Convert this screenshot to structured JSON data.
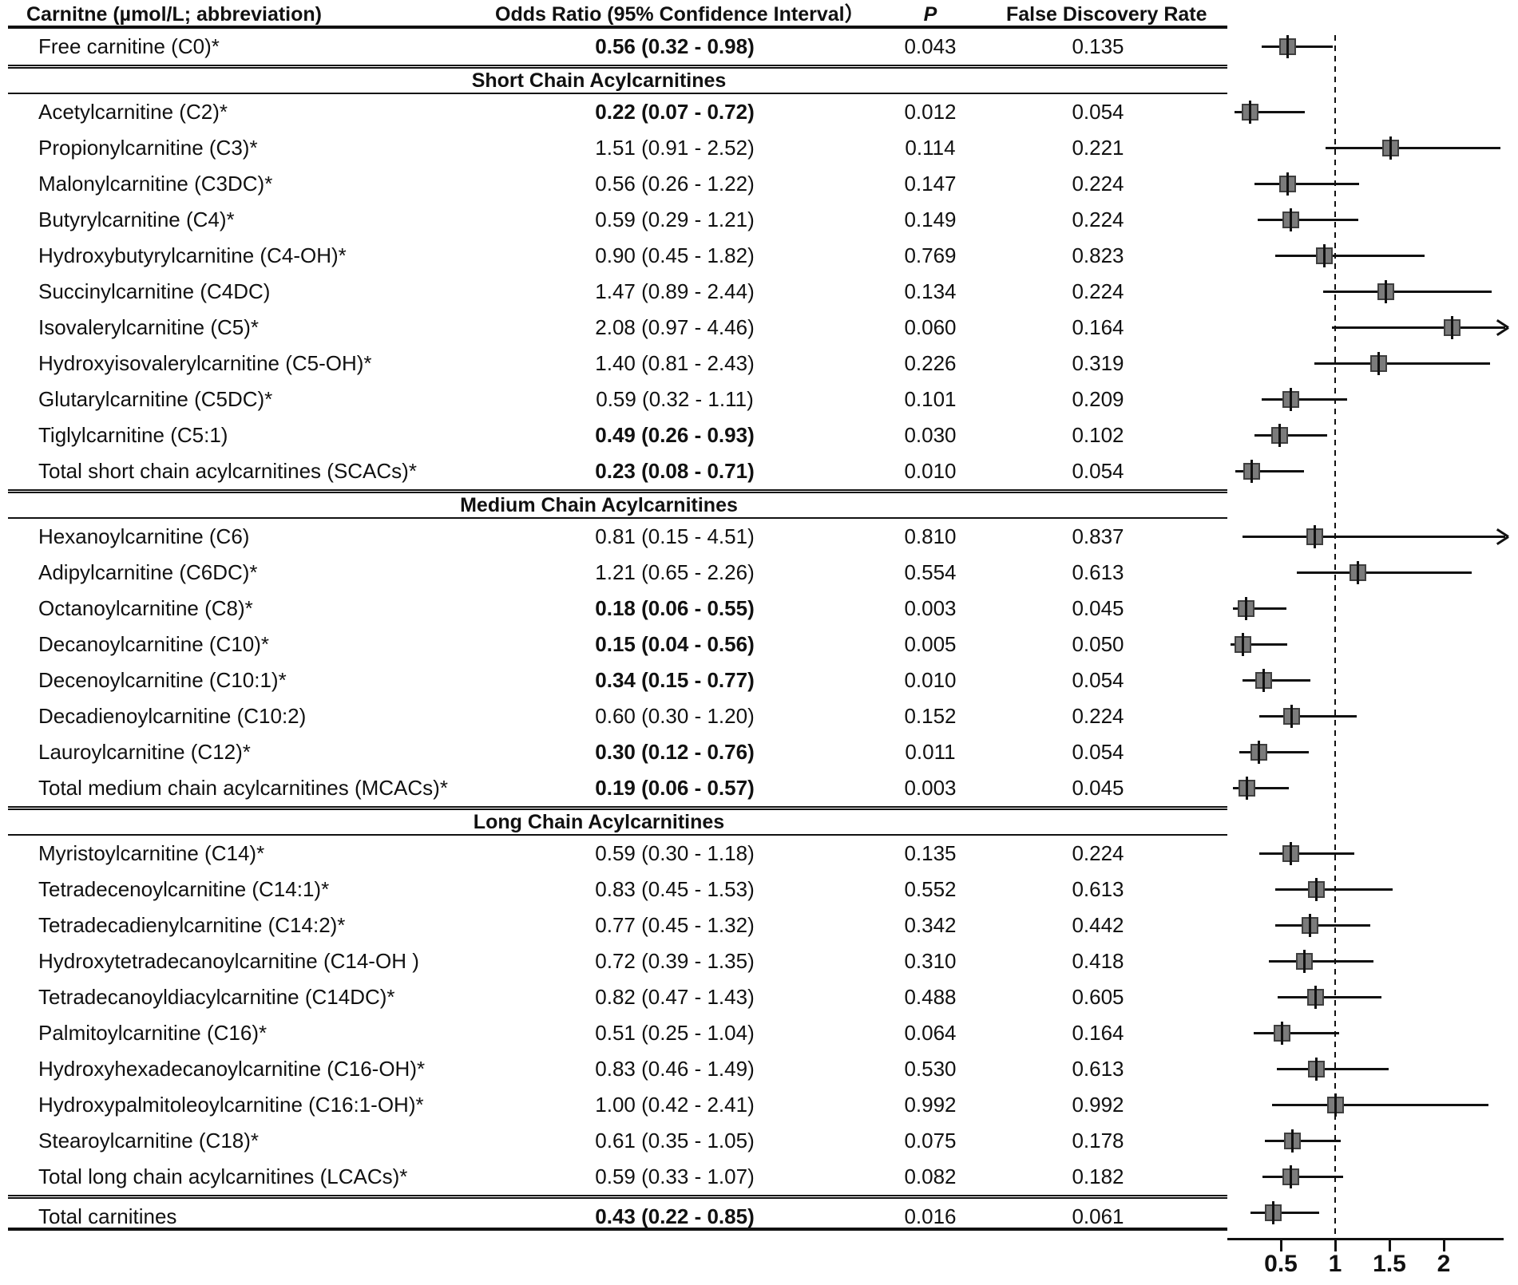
{
  "header": {
    "carnitine": "Carnitne (µmol/L; abbreviation)",
    "odds_ratio": "Odds Ratio (95% Confidence Interval）",
    "p": "P",
    "fdr": "False Discovery Rate"
  },
  "axis": {
    "tick_labels": [
      "0.5",
      "1",
      "1.5",
      "2"
    ],
    "tick_values": [
      0.5,
      1,
      1.5,
      2
    ],
    "reference_line": 1
  },
  "chart_data": {
    "type": "scatter",
    "subtype": "forest-plot",
    "xlabel": "Odds Ratio",
    "x_ticks": [
      0.5,
      1,
      1.5,
      2
    ],
    "x_clip_max": 2.55,
    "reference_line": 1,
    "marker_fill": "#7b7b7b",
    "marker_border": "#3f3f3f",
    "line_color": "#111111",
    "rows": [
      {
        "label": "Free carnitine (C0)*",
        "or_ci": "0.56 (0.32 - 0.98)",
        "bold": true,
        "p": "0.043",
        "fdr": "0.135",
        "or": 0.56,
        "lo": 0.32,
        "hi": 0.98,
        "arrow": false
      },
      {
        "section": "Short Chain Acylcarnitines"
      },
      {
        "label": "Acetylcarnitine (C2)*",
        "or_ci": "0.22 (0.07 - 0.72)",
        "bold": true,
        "p": "0.012",
        "fdr": "0.054",
        "or": 0.22,
        "lo": 0.07,
        "hi": 0.72,
        "arrow": false
      },
      {
        "label": "Propionylcarnitine (C3)*",
        "or_ci": "1.51 (0.91 - 2.52)",
        "bold": false,
        "p": "0.114",
        "fdr": "0.221",
        "or": 1.51,
        "lo": 0.91,
        "hi": 2.52,
        "arrow": false
      },
      {
        "label": "Malonylcarnitine (C3DC)*",
        "or_ci": "0.56 (0.26 - 1.22)",
        "bold": false,
        "p": "0.147",
        "fdr": "0.224",
        "or": 0.56,
        "lo": 0.26,
        "hi": 1.22,
        "arrow": false
      },
      {
        "label": "Butyrylcarnitine (C4)*",
        "or_ci": "0.59 (0.29 - 1.21)",
        "bold": false,
        "p": "0.149",
        "fdr": "0.224",
        "or": 0.59,
        "lo": 0.29,
        "hi": 1.21,
        "arrow": false
      },
      {
        "label": "Hydroxybutyrylcarnitine (C4-OH)*",
        "or_ci": "0.90 (0.45 - 1.82)",
        "bold": false,
        "p": "0.769",
        "fdr": "0.823",
        "or": 0.9,
        "lo": 0.45,
        "hi": 1.82,
        "arrow": false
      },
      {
        "label": "Succinylcarnitine (C4DC)",
        "or_ci": "1.47 (0.89 - 2.44)",
        "bold": false,
        "p": "0.134",
        "fdr": "0.224",
        "or": 1.47,
        "lo": 0.89,
        "hi": 2.44,
        "arrow": false
      },
      {
        "label": "Isovalerylcarnitine (C5)*",
        "or_ci": "2.08 (0.97 - 4.46)",
        "bold": false,
        "p": "0.060",
        "fdr": "0.164",
        "or": 2.08,
        "lo": 0.97,
        "hi": 4.46,
        "arrow": true
      },
      {
        "label": "Hydroxyisovalerylcarnitine (C5-OH)*",
        "or_ci": "1.40 (0.81 - 2.43)",
        "bold": false,
        "p": "0.226",
        "fdr": "0.319",
        "or": 1.4,
        "lo": 0.81,
        "hi": 2.43,
        "arrow": false
      },
      {
        "label": "Glutarylcarnitine (C5DC)*",
        "or_ci": "0.59 (0.32 - 1.11)",
        "bold": false,
        "p": "0.101",
        "fdr": "0.209",
        "or": 0.59,
        "lo": 0.32,
        "hi": 1.11,
        "arrow": false
      },
      {
        "label": "Tiglylcarnitine (C5:1)",
        "or_ci": "0.49 (0.26 - 0.93)",
        "bold": true,
        "p": "0.030",
        "fdr": "0.102",
        "or": 0.49,
        "lo": 0.26,
        "hi": 0.93,
        "arrow": false
      },
      {
        "label": "Total short chain acylcarnitines (SCACs)*",
        "or_ci": "0.23 (0.08 - 0.71)",
        "bold": true,
        "p": "0.010",
        "fdr": "0.054",
        "or": 0.23,
        "lo": 0.08,
        "hi": 0.71,
        "arrow": false
      },
      {
        "section": "Medium Chain Acylcarnitines"
      },
      {
        "label": "Hexanoylcarnitine (C6)",
        "or_ci": "0.81 (0.15 - 4.51)",
        "bold": false,
        "p": "0.810",
        "fdr": "0.837",
        "or": 0.81,
        "lo": 0.15,
        "hi": 4.51,
        "arrow": true
      },
      {
        "label": "Adipylcarnitine (C6DC)*",
        "or_ci": "1.21 (0.65 - 2.26)",
        "bold": false,
        "p": "0.554",
        "fdr": "0.613",
        "or": 1.21,
        "lo": 0.65,
        "hi": 2.26,
        "arrow": false
      },
      {
        "label": "Octanoylcarnitine (C8)*",
        "or_ci": "0.18 (0.06 - 0.55)",
        "bold": true,
        "p": "0.003",
        "fdr": "0.045",
        "or": 0.18,
        "lo": 0.06,
        "hi": 0.55,
        "arrow": false
      },
      {
        "label": "Decanoylcarnitine (C10)*",
        "or_ci": "0.15 (0.04 - 0.56)",
        "bold": true,
        "p": "0.005",
        "fdr": "0.050",
        "or": 0.15,
        "lo": 0.04,
        "hi": 0.56,
        "arrow": false
      },
      {
        "label": "Decenoylcarnitine (C10:1)*",
        "or_ci": "0.34 (0.15 - 0.77)",
        "bold": true,
        "p": "0.010",
        "fdr": "0.054",
        "or": 0.34,
        "lo": 0.15,
        "hi": 0.77,
        "arrow": false
      },
      {
        "label": "Decadienoylcarnitine (C10:2)",
        "or_ci": "0.60 (0.30 - 1.20)",
        "bold": false,
        "p": "0.152",
        "fdr": "0.224",
        "or": 0.6,
        "lo": 0.3,
        "hi": 1.2,
        "arrow": false
      },
      {
        "label": "Lauroylcarnitine (C12)*",
        "or_ci": "0.30 (0.12 - 0.76)",
        "bold": true,
        "p": "0.011",
        "fdr": "0.054",
        "or": 0.3,
        "lo": 0.12,
        "hi": 0.76,
        "arrow": false
      },
      {
        "label": "Total medium chain acylcarnitines (MCACs)*",
        "or_ci": "0.19 (0.06 - 0.57)",
        "bold": true,
        "p": "0.003",
        "fdr": "0.045",
        "or": 0.19,
        "lo": 0.06,
        "hi": 0.57,
        "arrow": false
      },
      {
        "section": "Long Chain Acylcarnitines"
      },
      {
        "label": "Myristoylcarnitine (C14)*",
        "or_ci": "0.59 (0.30 - 1.18)",
        "bold": false,
        "p": "0.135",
        "fdr": "0.224",
        "or": 0.59,
        "lo": 0.3,
        "hi": 1.18,
        "arrow": false
      },
      {
        "label": "Tetradecenoylcarnitine (C14:1)*",
        "or_ci": "0.83 (0.45 - 1.53)",
        "bold": false,
        "p": "0.552",
        "fdr": "0.613",
        "or": 0.83,
        "lo": 0.45,
        "hi": 1.53,
        "arrow": false
      },
      {
        "label": "Tetradecadienylcarnitine (C14:2)*",
        "or_ci": "0.77 (0.45 - 1.32)",
        "bold": false,
        "p": "0.342",
        "fdr": "0.442",
        "or": 0.77,
        "lo": 0.45,
        "hi": 1.32,
        "arrow": false
      },
      {
        "label": "Hydroxytetradecanoylcarnitine (C14-OH )",
        "or_ci": "0.72 (0.39 - 1.35)",
        "bold": false,
        "p": "0.310",
        "fdr": "0.418",
        "or": 0.72,
        "lo": 0.39,
        "hi": 1.35,
        "arrow": false
      },
      {
        "label": "Tetradecanoyldiacylcarnitine (C14DC)*",
        "or_ci": "0.82 (0.47 - 1.43)",
        "bold": false,
        "p": "0.488",
        "fdr": "0.605",
        "or": 0.82,
        "lo": 0.47,
        "hi": 1.43,
        "arrow": false
      },
      {
        "label": "Palmitoylcarnitine (C16)*",
        "or_ci": "0.51 (0.25 - 1.04)",
        "bold": false,
        "p": "0.064",
        "fdr": "0.164",
        "or": 0.51,
        "lo": 0.25,
        "hi": 1.04,
        "arrow": false
      },
      {
        "label": "Hydroxyhexadecanoylcarnitine (C16-OH)*",
        "or_ci": "0.83 (0.46 - 1.49)",
        "bold": false,
        "p": "0.530",
        "fdr": "0.613",
        "or": 0.83,
        "lo": 0.46,
        "hi": 1.49,
        "arrow": false
      },
      {
        "label": "Hydroxypalmitoleoylcarnitine (C16:1-OH)*",
        "or_ci": "1.00 (0.42 - 2.41)",
        "bold": false,
        "p": "0.992",
        "fdr": "0.992",
        "or": 1.0,
        "lo": 0.42,
        "hi": 2.41,
        "arrow": false
      },
      {
        "label": "Stearoylcarnitine (C18)*",
        "or_ci": "0.61 (0.35 - 1.05)",
        "bold": false,
        "p": "0.075",
        "fdr": "0.178",
        "or": 0.61,
        "lo": 0.35,
        "hi": 1.05,
        "arrow": false
      },
      {
        "label": "Total long chain acylcarnitines (LCACs)*",
        "or_ci": "0.59 (0.33 - 1.07)",
        "bold": false,
        "p": "0.082",
        "fdr": "0.182",
        "or": 0.59,
        "lo": 0.33,
        "hi": 1.07,
        "arrow": false
      },
      {
        "label": "Total carnitines",
        "or_ci": "0.43 (0.22 - 0.85)",
        "bold": true,
        "p": "0.016",
        "fdr": "0.061",
        "or": 0.43,
        "lo": 0.22,
        "hi": 0.85,
        "arrow": false,
        "total": true
      }
    ]
  }
}
